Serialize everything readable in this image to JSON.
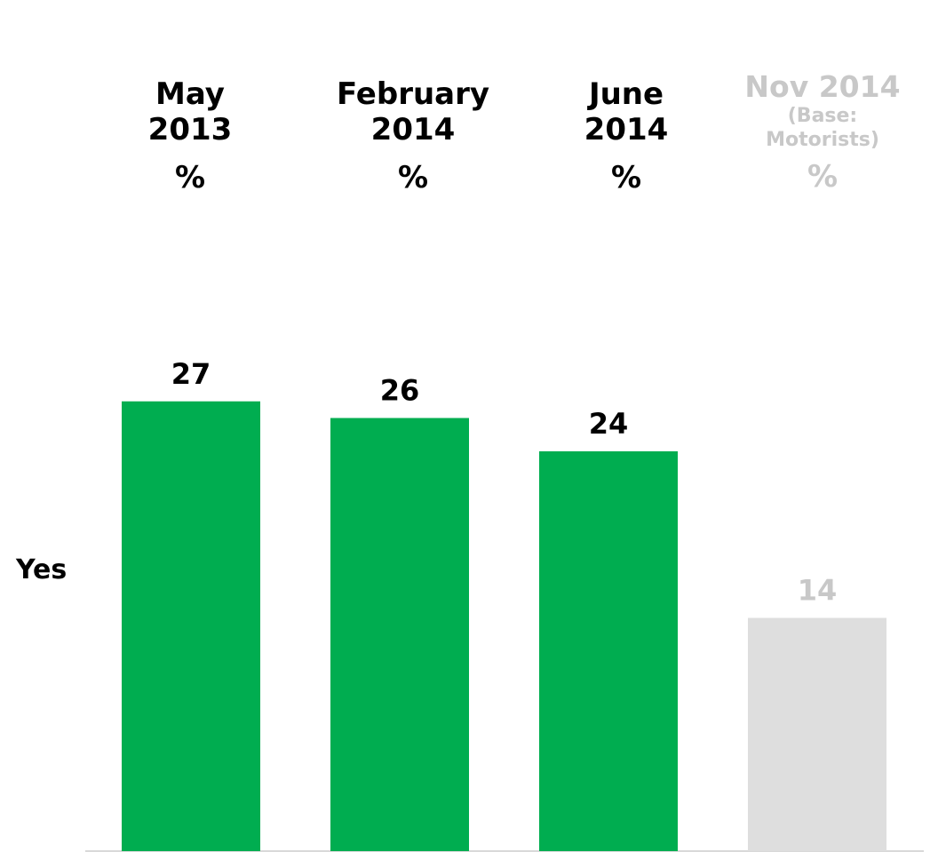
{
  "columns": [
    {
      "line1": "May",
      "line2": "2013",
      "unit": "%"
    },
    {
      "line1": "February",
      "line2": "2014",
      "unit": "%"
    },
    {
      "line1": "June",
      "line2": "2014",
      "unit": "%"
    },
    {
      "line1": "Nov 2014",
      "line2": "(Base:",
      "line3": "Motorists)",
      "unit": "%"
    }
  ],
  "row_label": "Yes",
  "colors": {
    "highlight": "#00ad50",
    "muted_bar": "#dedede",
    "muted_text": "#c8c8c8",
    "text": "#000000",
    "axis": "#d9d9d9"
  },
  "chart_data": {
    "type": "bar",
    "categories": [
      "May 2013",
      "February 2014",
      "June 2014",
      "Nov 2014 (Base: Motorists)"
    ],
    "series": [
      {
        "values": [
          27,
          26,
          24,
          14
        ]
      }
    ],
    "row_label": "Yes",
    "muted_categories": [
      "Nov 2014 (Base: Motorists)"
    ],
    "grid": false,
    "legend": "none"
  }
}
